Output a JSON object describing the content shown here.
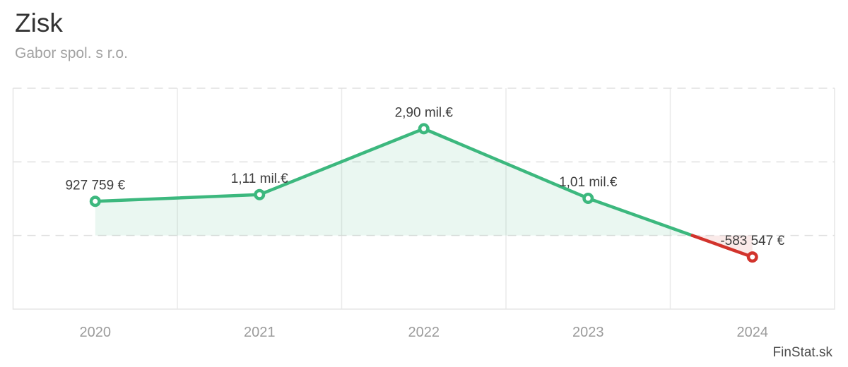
{
  "header": {
    "title": "Zisk",
    "subtitle": "Gabor spol. s r.o."
  },
  "footer": {
    "brand": "FinStat.sk"
  },
  "colors": {
    "positive": "#3cb87e",
    "negative": "#d2332c",
    "positive_fill": "rgba(60,184,126,0.11)",
    "negative_fill": "rgba(210,51,44,0.10)",
    "grid": "#e0e0e0",
    "grid_vertical": "#eaeaea",
    "border": "#e6e6e6",
    "value_label": "#3d3d3d",
    "axis_label": "#9b9b9b"
  },
  "chart_data": {
    "type": "line",
    "title": "Zisk",
    "subtitle": "Gabor spol. s r.o.",
    "categories": [
      "2020",
      "2021",
      "2022",
      "2023",
      "2024"
    ],
    "series": [
      {
        "name": "Zisk",
        "values": [
          927759,
          1110000,
          2900000,
          1010000,
          -583547
        ]
      }
    ],
    "labels": [
      "927 759 €",
      "1,11 mil.€",
      "2,90 mil.€",
      "1,01 mil.€",
      "-583 547 €"
    ],
    "xlabel": "",
    "ylabel": "",
    "ylim": [
      -2000000,
      4000000
    ],
    "grid_interval": 2000000,
    "grid": "on",
    "legend_position": "none",
    "notes": "line is green where value is positive, red below zero; area between line and zero baseline is shaded"
  }
}
